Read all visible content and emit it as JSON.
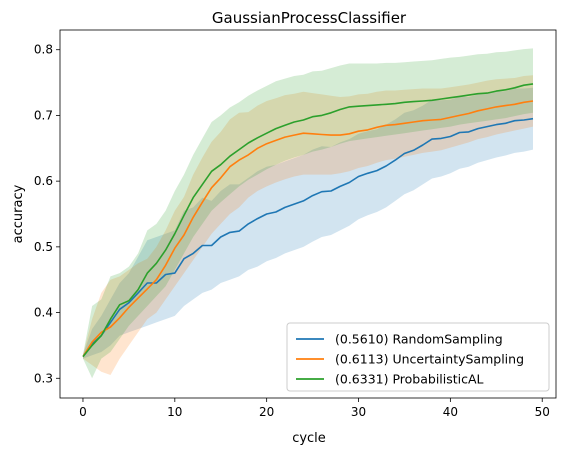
{
  "chart_data": {
    "type": "line",
    "title": "GaussianProcessClassifier",
    "xlabel": "cycle",
    "ylabel": "accuracy",
    "xlim": [
      -2.5,
      51.5
    ],
    "ylim": [
      0.27,
      0.83
    ],
    "xticks": [
      0,
      10,
      20,
      30,
      40,
      50
    ],
    "yticks": [
      0.3,
      0.4,
      0.5,
      0.6,
      0.7,
      0.8
    ],
    "xtick_labels": [
      "0",
      "10",
      "20",
      "30",
      "40",
      "50"
    ],
    "ytick_labels": [
      "0.3",
      "0.4",
      "0.5",
      "0.6",
      "0.7",
      "0.8"
    ],
    "grid": false,
    "legend_position": "lower-right",
    "bands": "shaded ± std per series",
    "x": [
      0,
      1,
      2,
      3,
      4,
      5,
      6,
      7,
      8,
      9,
      10,
      11,
      12,
      13,
      14,
      15,
      16,
      17,
      18,
      19,
      20,
      21,
      22,
      23,
      24,
      25,
      26,
      27,
      28,
      29,
      30,
      31,
      32,
      33,
      34,
      35,
      36,
      37,
      38,
      39,
      40,
      41,
      42,
      43,
      44,
      45,
      46,
      47,
      48,
      49
    ],
    "series": [
      {
        "name": "(0.5610) RandomSampling",
        "color": "#1f77b4",
        "values": [
          0.333,
          0.352,
          0.365,
          0.385,
          0.405,
          0.415,
          0.43,
          0.445,
          0.445,
          0.458,
          0.46,
          0.482,
          0.49,
          0.502,
          0.502,
          0.515,
          0.522,
          0.524,
          0.535,
          0.543,
          0.55,
          0.553,
          0.56,
          0.565,
          0.57,
          0.578,
          0.584,
          0.585,
          0.592,
          0.598,
          0.607,
          0.612,
          0.616,
          0.623,
          0.632,
          0.642,
          0.647,
          0.655,
          0.664,
          0.665,
          0.668,
          0.674,
          0.675,
          0.68,
          0.683,
          0.686,
          0.688,
          0.692,
          0.693,
          0.695
        ],
        "lower": [
          0.33,
          0.335,
          0.34,
          0.35,
          0.365,
          0.37,
          0.375,
          0.38,
          0.385,
          0.39,
          0.395,
          0.41,
          0.42,
          0.43,
          0.435,
          0.445,
          0.45,
          0.455,
          0.465,
          0.47,
          0.478,
          0.483,
          0.49,
          0.495,
          0.5,
          0.508,
          0.515,
          0.518,
          0.525,
          0.532,
          0.542,
          0.548,
          0.553,
          0.56,
          0.57,
          0.58,
          0.586,
          0.595,
          0.604,
          0.607,
          0.612,
          0.619,
          0.622,
          0.628,
          0.632,
          0.636,
          0.639,
          0.643,
          0.645,
          0.648
        ],
        "upper": [
          0.336,
          0.375,
          0.395,
          0.42,
          0.445,
          0.46,
          0.485,
          0.51,
          0.515,
          0.52,
          0.525,
          0.555,
          0.56,
          0.575,
          0.57,
          0.585,
          0.595,
          0.595,
          0.605,
          0.615,
          0.622,
          0.625,
          0.63,
          0.635,
          0.64,
          0.648,
          0.653,
          0.652,
          0.659,
          0.664,
          0.672,
          0.676,
          0.679,
          0.686,
          0.694,
          0.704,
          0.708,
          0.715,
          0.724,
          0.723,
          0.724,
          0.729,
          0.728,
          0.732,
          0.734,
          0.736,
          0.737,
          0.741,
          0.741,
          0.742
        ]
      },
      {
        "name": "(0.6113) UncertaintySampling",
        "color": "#ff7f0e",
        "values": [
          0.333,
          0.355,
          0.37,
          0.378,
          0.392,
          0.408,
          0.422,
          0.436,
          0.45,
          0.472,
          0.498,
          0.518,
          0.545,
          0.568,
          0.59,
          0.605,
          0.622,
          0.632,
          0.64,
          0.65,
          0.657,
          0.662,
          0.667,
          0.67,
          0.673,
          0.672,
          0.671,
          0.67,
          0.67,
          0.672,
          0.676,
          0.678,
          0.682,
          0.685,
          0.686,
          0.688,
          0.69,
          0.692,
          0.693,
          0.694,
          0.697,
          0.7,
          0.703,
          0.707,
          0.71,
          0.713,
          0.715,
          0.717,
          0.72,
          0.722
        ],
        "lower": [
          0.33,
          0.32,
          0.31,
          0.305,
          0.33,
          0.35,
          0.37,
          0.39,
          0.4,
          0.42,
          0.44,
          0.46,
          0.48,
          0.5,
          0.52,
          0.535,
          0.55,
          0.56,
          0.575,
          0.585,
          0.592,
          0.598,
          0.603,
          0.607,
          0.61,
          0.61,
          0.61,
          0.61,
          0.612,
          0.615,
          0.62,
          0.623,
          0.628,
          0.632,
          0.634,
          0.637,
          0.64,
          0.643,
          0.645,
          0.647,
          0.651,
          0.655,
          0.659,
          0.664,
          0.667,
          0.671,
          0.674,
          0.677,
          0.68,
          0.683
        ],
        "upper": [
          0.336,
          0.39,
          0.43,
          0.45,
          0.455,
          0.465,
          0.475,
          0.482,
          0.5,
          0.525,
          0.555,
          0.576,
          0.61,
          0.636,
          0.66,
          0.675,
          0.694,
          0.704,
          0.705,
          0.715,
          0.722,
          0.726,
          0.731,
          0.733,
          0.736,
          0.734,
          0.732,
          0.73,
          0.728,
          0.729,
          0.732,
          0.733,
          0.736,
          0.738,
          0.738,
          0.739,
          0.74,
          0.741,
          0.741,
          0.741,
          0.743,
          0.745,
          0.747,
          0.75,
          0.753,
          0.755,
          0.756,
          0.757,
          0.76,
          0.761
        ]
      },
      {
        "name": "(0.6331) ProbabilisticAL",
        "color": "#2ca02c",
        "values": [
          0.333,
          0.35,
          0.365,
          0.39,
          0.412,
          0.418,
          0.435,
          0.46,
          0.475,
          0.495,
          0.52,
          0.548,
          0.575,
          0.595,
          0.615,
          0.625,
          0.638,
          0.648,
          0.658,
          0.666,
          0.673,
          0.68,
          0.685,
          0.69,
          0.693,
          0.698,
          0.7,
          0.704,
          0.709,
          0.713,
          0.714,
          0.715,
          0.716,
          0.717,
          0.718,
          0.72,
          0.721,
          0.722,
          0.723,
          0.725,
          0.727,
          0.729,
          0.731,
          0.733,
          0.734,
          0.737,
          0.739,
          0.742,
          0.746,
          0.748
        ],
        "lower": [
          0.33,
          0.3,
          0.33,
          0.34,
          0.36,
          0.38,
          0.395,
          0.41,
          0.425,
          0.44,
          0.465,
          0.49,
          0.515,
          0.535,
          0.555,
          0.568,
          0.58,
          0.592,
          0.602,
          0.61,
          0.618,
          0.625,
          0.631,
          0.636,
          0.64,
          0.645,
          0.648,
          0.652,
          0.657,
          0.661,
          0.663,
          0.665,
          0.667,
          0.669,
          0.671,
          0.673,
          0.675,
          0.677,
          0.679,
          0.681,
          0.683,
          0.686,
          0.688,
          0.69,
          0.692,
          0.694,
          0.696,
          0.699,
          0.702,
          0.704
        ],
        "upper": [
          0.336,
          0.41,
          0.42,
          0.455,
          0.46,
          0.47,
          0.49,
          0.525,
          0.535,
          0.555,
          0.585,
          0.61,
          0.64,
          0.665,
          0.69,
          0.7,
          0.712,
          0.72,
          0.73,
          0.738,
          0.745,
          0.752,
          0.756,
          0.76,
          0.762,
          0.767,
          0.768,
          0.772,
          0.776,
          0.779,
          0.779,
          0.779,
          0.779,
          0.78,
          0.78,
          0.781,
          0.782,
          0.783,
          0.784,
          0.786,
          0.788,
          0.789,
          0.791,
          0.793,
          0.794,
          0.796,
          0.797,
          0.799,
          0.801,
          0.802
        ]
      }
    ]
  }
}
